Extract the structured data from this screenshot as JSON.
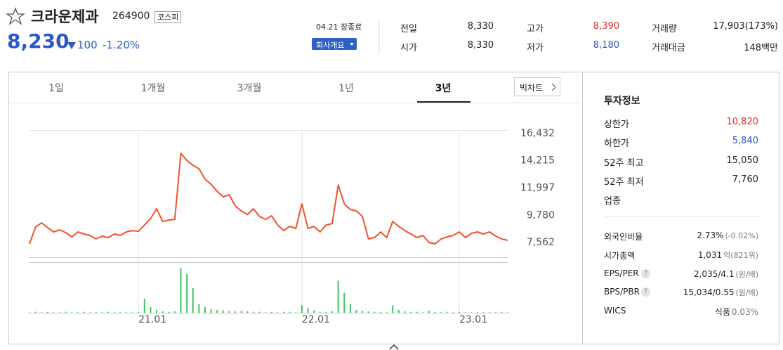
{
  "header": {
    "name": "크라운제과",
    "code": "264900",
    "market": "코스피",
    "price": "8,230",
    "change": "100",
    "change_rate": "-1.20%",
    "status": "04.21 장종료",
    "company_button": "회사개요"
  },
  "summary": [
    {
      "label": "전일",
      "value": "8,330"
    },
    {
      "label": "고가",
      "value": "8,390"
    },
    {
      "label": "거래량",
      "value": "17,903(173%)"
    },
    {
      "label": "시가",
      "value": "8,330"
    },
    {
      "label": "저가",
      "value": "8,180"
    },
    {
      "label": "거래대금",
      "value": "148백만"
    }
  ],
  "tabs": [
    "1일",
    "1개월",
    "3개월",
    "1년",
    "3년"
  ],
  "active_tab": 4,
  "big_chart": "빅차트",
  "invest": {
    "title": "투자정보",
    "rows1": [
      {
        "label": "상한가",
        "value": "10,820"
      },
      {
        "label": "하한가",
        "value": "5,840"
      },
      {
        "label": "52주 최고",
        "value": "15,050"
      },
      {
        "label": "52주 최저",
        "value": "7,760"
      },
      {
        "label": "업종"
      }
    ],
    "rows2": [
      {
        "label": "외국인비율",
        "value": "2.73%",
        "note": "(-0.02%)"
      },
      {
        "label": "시가총액",
        "value": "1,031",
        "note": "억(821위)"
      },
      {
        "label": "EPS/PER",
        "help": true,
        "value": "2,035/4.1",
        "note": "(원/배)"
      },
      {
        "label": "BPS/PBR",
        "help": true,
        "value": "15,034/0.55",
        "note": "(원/배)"
      },
      {
        "label": "WICS",
        "value": "식품",
        "note": "0.03%"
      }
    ],
    "help_icon": "?"
  },
  "chart_data": [
    {
      "type": "line",
      "categories": [
        null,
        null,
        null,
        null,
        null,
        null,
        null,
        null,
        null,
        null,
        null,
        null,
        null,
        null,
        null,
        null,
        null,
        null,
        "21.01",
        null,
        null,
        null,
        null,
        null,
        null,
        null,
        null,
        null,
        null,
        null,
        null,
        null,
        null,
        null,
        null,
        null,
        null,
        null,
        null,
        null,
        null,
        null,
        null,
        null,
        null,
        "22.01",
        null,
        null,
        null,
        null,
        null,
        null,
        null,
        null,
        null,
        null,
        null,
        null,
        null,
        null,
        null,
        null,
        null,
        null,
        null,
        null,
        null,
        null,
        null,
        null,
        null,
        "23.01",
        null,
        null,
        null,
        null,
        null,
        null,
        null,
        null
      ],
      "series": [
        {
          "color": "#f0522f",
          "values": [
            7448,
            8819,
            9162,
            8762,
            8419,
            8590,
            8362,
            8019,
            8419,
            8248,
            8133,
            7848,
            8076,
            7962,
            8248,
            8133,
            8419,
            8533,
            8476,
            8991,
            9505,
            10305,
            9277,
            9391,
            9448,
            14820,
            14248,
            13848,
            13563,
            12706,
            12306,
            11734,
            11277,
            11448,
            10534,
            10134,
            9848,
            10305,
            9677,
            9448,
            9734,
            8991,
            8533,
            8876,
            8705,
            10705,
            8705,
            8876,
            8419,
            8991,
            9105,
            12249,
            10705,
            10248,
            10134,
            9677,
            7848,
            7962,
            8419,
            7962,
            9277,
            8876,
            8533,
            8248,
            7962,
            8133,
            7562,
            7448,
            7848,
            8019,
            8133,
            8419,
            7962,
            8305,
            8419,
            8248,
            8419,
            8076,
            7848,
            7733
          ]
        }
      ],
      "ylim": [
        6362,
        16718
      ],
      "yticks": [
        {
          "value": 16432,
          "label": "16,432"
        },
        {
          "value": 14215,
          "label": "14,215"
        },
        {
          "value": 11997,
          "label": "11,997"
        },
        {
          "value": 9780,
          "label": "9,780"
        },
        {
          "value": 7562,
          "label": "7,562"
        }
      ]
    },
    {
      "type": "bar",
      "color": "#3cc764",
      "ylim": [
        0,
        100
      ],
      "values": [
        1,
        2,
        1,
        2,
        1,
        1,
        2,
        1,
        1,
        2,
        1,
        1,
        1,
        2,
        1,
        1,
        1,
        1,
        2,
        30,
        12,
        5,
        3,
        2,
        3,
        95,
        82,
        52,
        18,
        12,
        8,
        6,
        5,
        4,
        3,
        4,
        3,
        2,
        2,
        1,
        2,
        1,
        2,
        2,
        1,
        16,
        10,
        5,
        2,
        2,
        3,
        68,
        42,
        18,
        6,
        4,
        3,
        2,
        2,
        1,
        16,
        6,
        3,
        2,
        2,
        1,
        4,
        2,
        1,
        2,
        1,
        2,
        1,
        1,
        2,
        1,
        1,
        1,
        2,
        1
      ]
    }
  ]
}
